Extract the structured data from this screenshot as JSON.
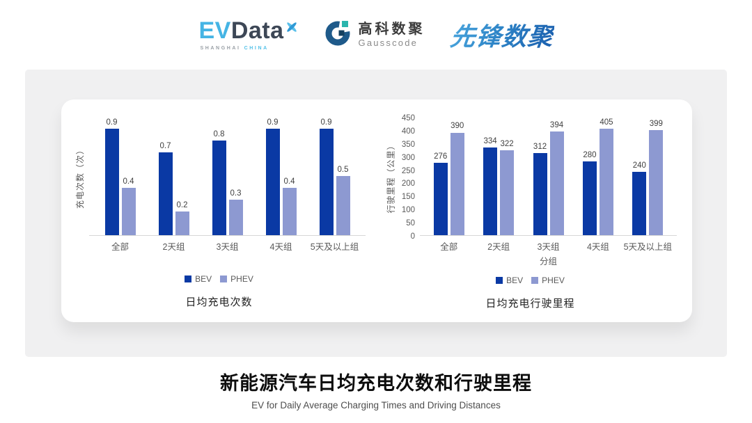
{
  "header": {
    "evdata": {
      "ev": "EV",
      "data": "Data",
      "sub_left": "SHANGHAI",
      "sub_right": "CHINA"
    },
    "gausscode": {
      "cn": "高科数聚",
      "en": "Gausscode"
    },
    "xianfeng": {
      "text": "先锋数聚"
    }
  },
  "colors": {
    "bev": "#0a39a4",
    "phev": "#8d99d1",
    "panel_bg": "#f0f0f1",
    "axis": "#d6d6d6",
    "logo_blue": "#45b4e4",
    "logo_dark": "#3d4756"
  },
  "chart_data": [
    {
      "type": "bar",
      "title": "日均充电次数",
      "ylabel": "充电次数（次）",
      "xlabel": "",
      "categories": [
        "全部",
        "2天组",
        "3天组",
        "4天组",
        "5天及以上组"
      ],
      "series": [
        {
          "name": "BEV",
          "color": "#0a39a4",
          "values": [
            0.9,
            0.7,
            0.8,
            0.9,
            0.9
          ]
        },
        {
          "name": "PHEV",
          "color": "#8d99d1",
          "values": [
            0.4,
            0.2,
            0.3,
            0.4,
            0.5
          ]
        }
      ],
      "ylim": [
        0,
        1
      ],
      "y_ticks": [],
      "grid": false,
      "legend_position": "bottom"
    },
    {
      "type": "bar",
      "title": "日均充电行驶里程",
      "ylabel": "行驶里程（公里）",
      "xlabel": "分组",
      "categories": [
        "全部",
        "2天组",
        "3天组",
        "4天组",
        "5天及以上组"
      ],
      "series": [
        {
          "name": "BEV",
          "color": "#0a39a4",
          "values": [
            276,
            334,
            312,
            280,
            240
          ]
        },
        {
          "name": "PHEV",
          "color": "#8d99d1",
          "values": [
            390,
            322,
            394,
            405,
            399
          ]
        }
      ],
      "ylim": [
        0,
        450
      ],
      "y_ticks": [
        0,
        50,
        100,
        150,
        200,
        250,
        300,
        350,
        400,
        450
      ],
      "grid": false,
      "legend_position": "bottom"
    }
  ],
  "footer": {
    "title": "新能源汽车日均充电次数和行驶里程",
    "subtitle": "EV for Daily Average Charging Times and Driving Distances"
  }
}
